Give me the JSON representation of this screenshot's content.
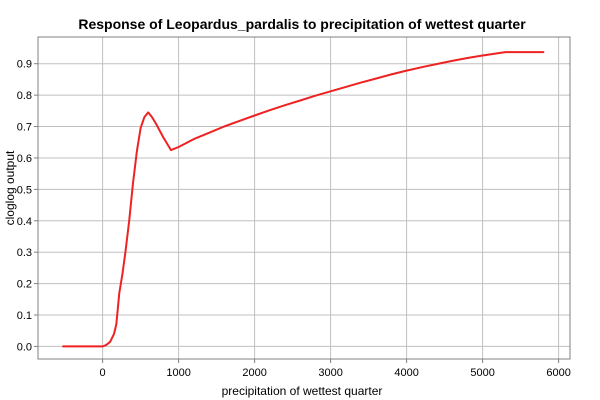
{
  "chart_data": {
    "type": "line",
    "title": "Response of Leopardus_pardalis to precipitation of wettest quarter",
    "xlabel": "precipitation of wettest quarter",
    "ylabel": "cloglog output",
    "xlim": [
      -850,
      6150
    ],
    "ylim": [
      -0.04,
      0.985
    ],
    "x_ticks": [
      0,
      1000,
      2000,
      3000,
      4000,
      5000,
      6000
    ],
    "y_ticks": [
      0.0,
      0.1,
      0.2,
      0.3,
      0.4,
      0.5,
      0.6,
      0.7,
      0.8,
      0.9
    ],
    "grid": true,
    "line_color": "#ee2222",
    "series": [
      {
        "x": [
          -520,
          -200,
          0,
          50,
          100,
          150,
          180,
          200,
          220,
          260,
          300,
          350,
          400,
          450,
          500,
          550,
          600,
          650,
          700,
          800,
          900,
          1000,
          1200,
          1400,
          1600,
          1800,
          2000,
          2200,
          2400,
          2600,
          2800,
          3000,
          3200,
          3400,
          3600,
          3800,
          4000,
          4200,
          4400,
          4600,
          4800,
          5000,
          5200,
          5300,
          5400,
          5600,
          5800
        ],
        "y": [
          0.0,
          0.0,
          0.0,
          0.005,
          0.015,
          0.04,
          0.07,
          0.12,
          0.17,
          0.23,
          0.3,
          0.4,
          0.52,
          0.62,
          0.695,
          0.73,
          0.745,
          0.73,
          0.71,
          0.665,
          0.625,
          0.635,
          0.66,
          0.68,
          0.7,
          0.718,
          0.735,
          0.752,
          0.768,
          0.783,
          0.798,
          0.812,
          0.826,
          0.84,
          0.853,
          0.866,
          0.878,
          0.889,
          0.899,
          0.909,
          0.918,
          0.926,
          0.933,
          0.937,
          0.937,
          0.937,
          0.937
        ]
      }
    ]
  }
}
